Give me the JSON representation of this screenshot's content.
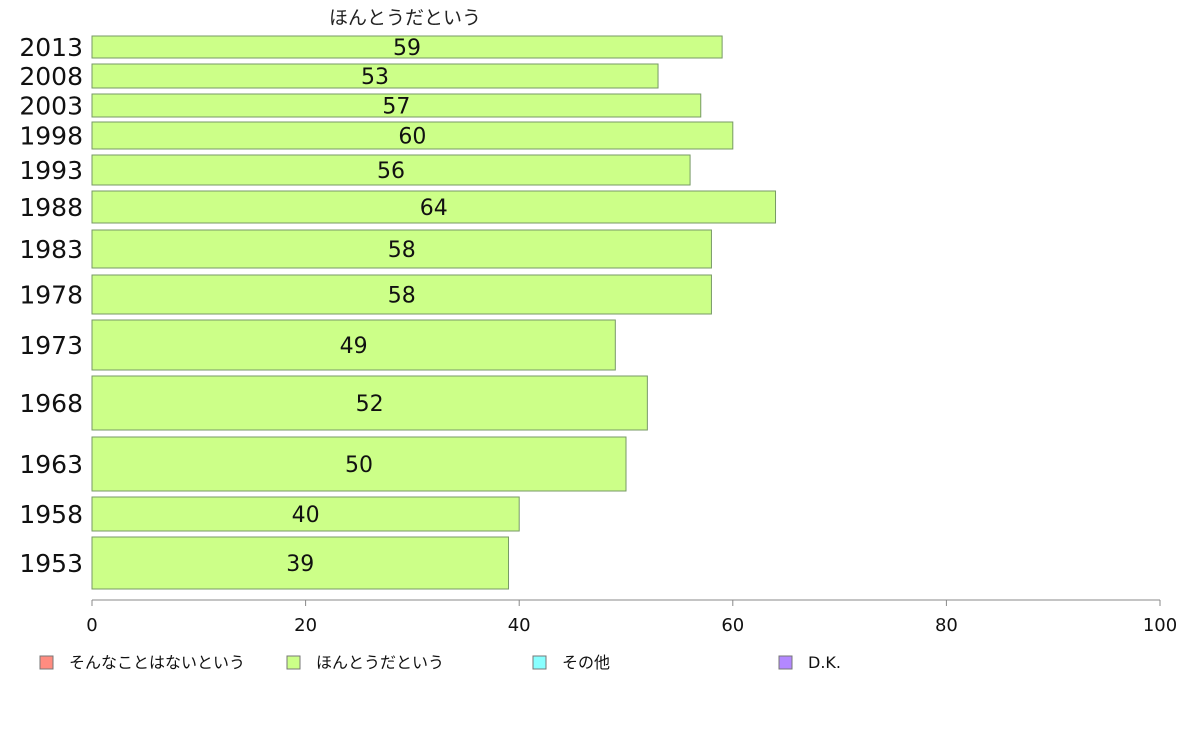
{
  "chart_data": {
    "type": "bar",
    "orientation": "horizontal",
    "title": "ほんとうだという",
    "categories": [
      "2013",
      "2008",
      "2003",
      "1998",
      "1993",
      "1988",
      "1983",
      "1978",
      "1973",
      "1968",
      "1963",
      "1958",
      "1953"
    ],
    "series": [
      {
        "name": "ほんとうだという",
        "values": [
          59,
          53,
          57,
          60,
          56,
          64,
          58,
          58,
          49,
          52,
          50,
          40,
          39
        ],
        "color": "#ccff88"
      }
    ],
    "xlim": [
      0,
      100
    ],
    "xticks": [
      0,
      20,
      40,
      60,
      80,
      100
    ],
    "grid": false,
    "legend_position": "bottom-left",
    "legend": [
      {
        "label": "そんなことはないという",
        "color": "#ff8c80"
      },
      {
        "label": "ほんとうだという",
        "color": "#ccff88"
      },
      {
        "label": "その他",
        "color": "#88ffff"
      },
      {
        "label": "D.K.",
        "color": "#b388ff"
      }
    ]
  }
}
